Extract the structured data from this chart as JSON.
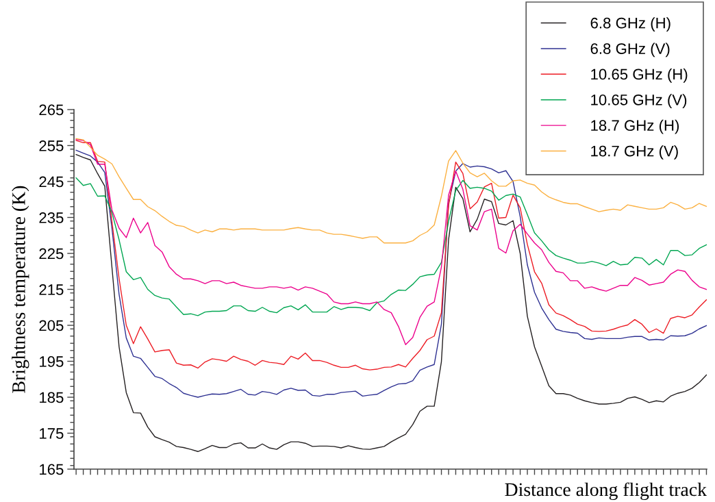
{
  "chart_data": {
    "type": "line",
    "xlabel": "Distance along flight track",
    "ylabel": "Brightness temperature (K)",
    "categories": [
      null,
      null,
      null,
      null,
      null,
      null,
      null,
      null,
      null,
      null,
      null,
      null,
      null,
      null,
      null,
      null,
      null,
      null,
      null,
      null,
      null,
      null,
      null,
      null,
      null,
      null,
      null,
      null,
      null,
      null,
      null,
      null,
      null,
      null,
      null,
      null,
      null,
      null,
      null,
      null,
      null,
      null,
      null,
      null,
      null,
      null,
      null,
      null,
      null,
      null,
      null,
      null,
      null,
      null,
      null,
      null,
      null,
      null,
      null,
      null,
      null,
      null,
      null,
      null,
      null,
      null,
      null,
      null,
      null,
      null,
      null,
      null,
      null,
      null,
      null,
      null,
      null,
      null,
      null,
      null,
      null,
      null,
      null,
      null,
      null,
      null,
      null,
      null,
      null
    ],
    "ylim": [
      165,
      265
    ],
    "yticks": [
      165,
      175,
      185,
      195,
      205,
      215,
      225,
      235,
      245,
      255,
      265
    ],
    "grid": false,
    "legend": "top right",
    "marker": "none",
    "line_style": "solid",
    "tick_labels": "y",
    "series": [
      {
        "name": "6.8 GHz (H)",
        "color": "#231f20",
        "values": [
          252.5,
          251.7,
          251.0,
          247.2,
          243.7,
          221.2,
          199.0,
          186.3,
          180.7,
          180.6,
          176.7,
          174.0,
          173.2,
          172.5,
          171.3,
          171.0,
          170.5,
          169.9,
          170.7,
          171.6,
          171.0,
          171.0,
          172.0,
          172.3,
          170.9,
          170.9,
          172.0,
          170.9,
          170.5,
          171.8,
          172.6,
          172.6,
          172.2,
          171.3,
          171.4,
          171.4,
          171.3,
          170.9,
          171.5,
          171.0,
          170.6,
          170.5,
          170.9,
          171.3,
          172.6,
          173.7,
          174.7,
          177.4,
          181.1,
          182.5,
          182.5,
          194.9,
          228.8,
          243.4,
          240.2,
          231.0,
          234.5,
          240.1,
          239.4,
          233.3,
          232.9,
          234.1,
          225.0,
          207.5,
          199.0,
          193.6,
          188.2,
          186.0,
          186.0,
          185.6,
          184.7,
          184.0,
          183.5,
          183.1,
          183.1,
          183.3,
          183.6,
          184.7,
          185.1,
          184.4,
          183.5,
          184.0,
          183.7,
          185.3,
          186.1,
          186.6,
          187.5,
          189.1,
          191.2
        ]
      },
      {
        "name": "6.8 GHz (V)",
        "color": "#2e3192",
        "values": [
          253.7,
          252.9,
          252.1,
          250.4,
          247.5,
          232.0,
          213.6,
          201.5,
          196.4,
          195.8,
          193.3,
          190.8,
          190.2,
          188.8,
          187.7,
          186.1,
          185.5,
          185.0,
          185.5,
          185.9,
          185.8,
          186.0,
          186.6,
          187.2,
          185.8,
          185.6,
          186.6,
          186.3,
          185.8,
          187.0,
          187.5,
          186.9,
          187.0,
          185.5,
          185.3,
          185.8,
          185.8,
          186.3,
          186.5,
          186.7,
          185.3,
          185.6,
          185.8,
          186.9,
          187.9,
          188.7,
          188.8,
          189.6,
          192.5,
          193.4,
          194.1,
          205.3,
          239.0,
          247.9,
          250.0,
          249.0,
          249.3,
          249.1,
          248.5,
          247.4,
          248.0,
          245.0,
          235.2,
          221.8,
          214.2,
          209.8,
          206.6,
          203.9,
          203.3,
          203.0,
          202.8,
          201.3,
          201.1,
          201.5,
          201.3,
          201.3,
          201.3,
          201.7,
          201.9,
          201.9,
          200.9,
          201.1,
          200.9,
          202.1,
          202.0,
          202.1,
          202.8,
          204.0,
          204.9
        ]
      },
      {
        "name": "10.65 GHz (H)",
        "color": "#ed1c24",
        "values": [
          256.4,
          255.8,
          255.8,
          250.6,
          250.4,
          233.9,
          218.0,
          205.0,
          199.9,
          204.6,
          201.2,
          197.6,
          198.0,
          198.2,
          194.5,
          193.9,
          194.0,
          193.1,
          194.8,
          195.7,
          195.4,
          195.0,
          196.4,
          195.5,
          195.0,
          193.9,
          195.2,
          194.7,
          194.5,
          194.1,
          196.4,
          195.6,
          197.3,
          195.2,
          195.2,
          194.7,
          193.9,
          193.3,
          193.3,
          193.9,
          192.9,
          192.6,
          192.8,
          193.3,
          193.4,
          194.1,
          193.4,
          195.8,
          198.0,
          201.0,
          202.0,
          208.5,
          238.3,
          250.4,
          247.2,
          237.4,
          239.3,
          243.5,
          244.5,
          234.8,
          235.0,
          241.2,
          237.7,
          227.5,
          219.9,
          216.7,
          210.7,
          208.4,
          207.7,
          206.6,
          205.3,
          204.7,
          203.4,
          203.3,
          203.4,
          203.9,
          204.6,
          205.1,
          206.6,
          205.3,
          203.0,
          204.0,
          202.8,
          206.9,
          207.5,
          207.1,
          207.9,
          210.1,
          212.1
        ]
      },
      {
        "name": "10.65 GHz (V)",
        "color": "#00a651",
        "values": [
          246.0,
          243.9,
          244.4,
          240.9,
          241.0,
          236.4,
          228.8,
          219.9,
          217.7,
          218.3,
          215.0,
          213.3,
          212.6,
          212.3,
          210.1,
          208.0,
          208.2,
          207.7,
          208.7,
          208.9,
          208.9,
          209.1,
          210.4,
          210.4,
          209.1,
          208.9,
          210.0,
          208.9,
          208.5,
          209.9,
          210.4,
          209.3,
          210.7,
          208.7,
          208.7,
          208.7,
          210.2,
          209.4,
          210.0,
          210.0,
          209.8,
          209.1,
          211.3,
          211.8,
          213.6,
          214.8,
          214.7,
          216.4,
          218.5,
          219.0,
          219.2,
          222.5,
          233.9,
          242.5,
          245.3,
          243.1,
          243.4,
          243.1,
          242.3,
          239.8,
          241.1,
          241.5,
          240.7,
          235.8,
          230.7,
          228.5,
          226.0,
          224.4,
          223.7,
          223.1,
          222.3,
          222.3,
          222.8,
          222.3,
          221.6,
          222.8,
          221.8,
          222.0,
          223.9,
          223.7,
          221.8,
          223.3,
          221.8,
          225.8,
          225.8,
          224.4,
          224.6,
          226.4,
          227.4
        ]
      },
      {
        "name": "18.7 GHz (H)",
        "color": "#ec008c",
        "values": [
          256.7,
          256.4,
          255.2,
          249.8,
          249.8,
          237.1,
          232.0,
          229.4,
          234.8,
          230.7,
          233.6,
          227.2,
          225.4,
          221.3,
          219.2,
          217.9,
          217.9,
          217.4,
          216.6,
          217.4,
          217.4,
          216.6,
          217.0,
          216.1,
          215.7,
          215.3,
          215.3,
          215.7,
          215.7,
          215.3,
          215.7,
          214.8,
          215.7,
          215.3,
          214.5,
          213.7,
          211.5,
          211.0,
          211.0,
          211.5,
          211.0,
          211.0,
          211.5,
          209.4,
          208.5,
          204.7,
          199.6,
          201.6,
          207.2,
          210.3,
          211.5,
          221.2,
          241.2,
          247.9,
          242.8,
          232.7,
          231.5,
          236.6,
          237.3,
          226.4,
          225.1,
          231.3,
          233.1,
          230.4,
          227.9,
          226.0,
          222.5,
          220.0,
          219.6,
          217.4,
          217.4,
          215.3,
          215.7,
          215.0,
          214.5,
          215.3,
          216.1,
          216.1,
          218.3,
          217.5,
          216.2,
          216.6,
          217.0,
          219.2,
          220.4,
          220.0,
          217.5,
          215.7,
          215.0
        ]
      },
      {
        "name": "18.7 GHz (V)",
        "color": "#fbb040",
        "values": [
          256.9,
          256.6,
          254.5,
          252.3,
          251.2,
          249.9,
          246.3,
          243.1,
          240.0,
          240.0,
          238.0,
          236.9,
          235.3,
          233.9,
          232.8,
          232.5,
          231.5,
          230.7,
          231.5,
          231.0,
          231.8,
          231.8,
          231.5,
          231.8,
          231.8,
          231.8,
          231.5,
          231.5,
          231.5,
          231.5,
          231.9,
          232.2,
          231.8,
          231.5,
          231.5,
          230.7,
          230.3,
          230.3,
          230.0,
          229.6,
          229.2,
          229.6,
          229.6,
          227.9,
          227.9,
          227.9,
          227.9,
          228.5,
          230.0,
          231.0,
          232.9,
          240.9,
          250.7,
          253.6,
          250.1,
          247.4,
          246.3,
          247.3,
          245.2,
          243.7,
          243.7,
          245.2,
          245.4,
          244.5,
          244.0,
          242.1,
          240.7,
          239.9,
          239.2,
          238.8,
          238.8,
          238.0,
          237.3,
          236.6,
          237.0,
          237.3,
          237.0,
          238.5,
          238.1,
          237.7,
          237.3,
          237.3,
          237.7,
          239.2,
          238.5,
          237.3,
          237.7,
          238.9,
          238.1
        ]
      }
    ]
  }
}
